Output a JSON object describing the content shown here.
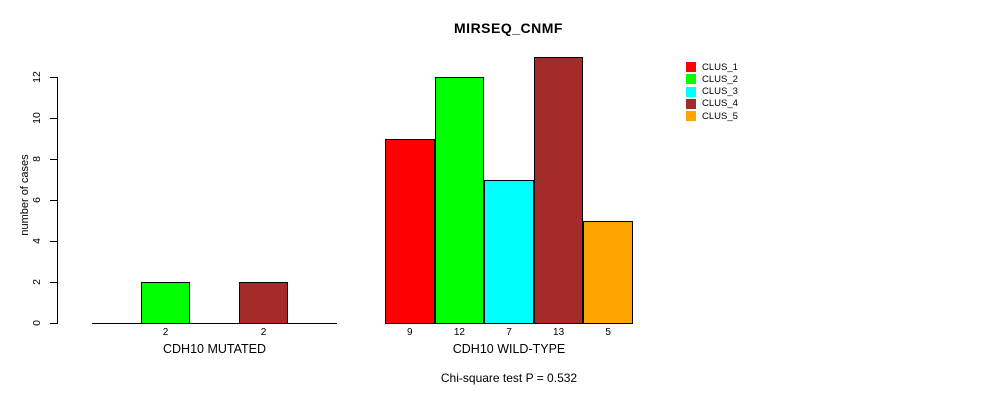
{
  "chart_data": {
    "type": "bar",
    "title": "MIRSEQ_CNMF",
    "ylabel": "number of cases",
    "yticks": [
      0,
      2,
      4,
      6,
      8,
      10,
      12
    ],
    "ylim": [
      0,
      13
    ],
    "grid": false,
    "legend_position": "right",
    "categories": [
      "CLUS_1",
      "CLUS_2",
      "CLUS_3",
      "CLUS_4",
      "CLUS_5"
    ],
    "series_colors": [
      "#FF0000",
      "#00FF00",
      "#00FFFF",
      "#A52A2A",
      "#FFA500"
    ],
    "groups": [
      {
        "label": "CDH10 MUTATED",
        "values": [
          0,
          2,
          0,
          2,
          0
        ],
        "value_labels": [
          "",
          "2",
          "",
          "2",
          ""
        ]
      },
      {
        "label": "CDH10 WILD-TYPE",
        "values": [
          9,
          12,
          7,
          13,
          5
        ],
        "value_labels": [
          "9",
          "12",
          "7",
          "13",
          "5"
        ]
      }
    ],
    "legend": [
      {
        "label": "CLUS_1",
        "color": "#FF0000"
      },
      {
        "label": "CLUS_2",
        "color": "#00FF00"
      },
      {
        "label": "CLUS_3",
        "color": "#00FFFF"
      },
      {
        "label": "CLUS_4",
        "color": "#A52A2A"
      },
      {
        "label": "CLUS_5",
        "color": "#FFA500"
      }
    ],
    "footnote": "Chi-square test P = 0.532"
  }
}
